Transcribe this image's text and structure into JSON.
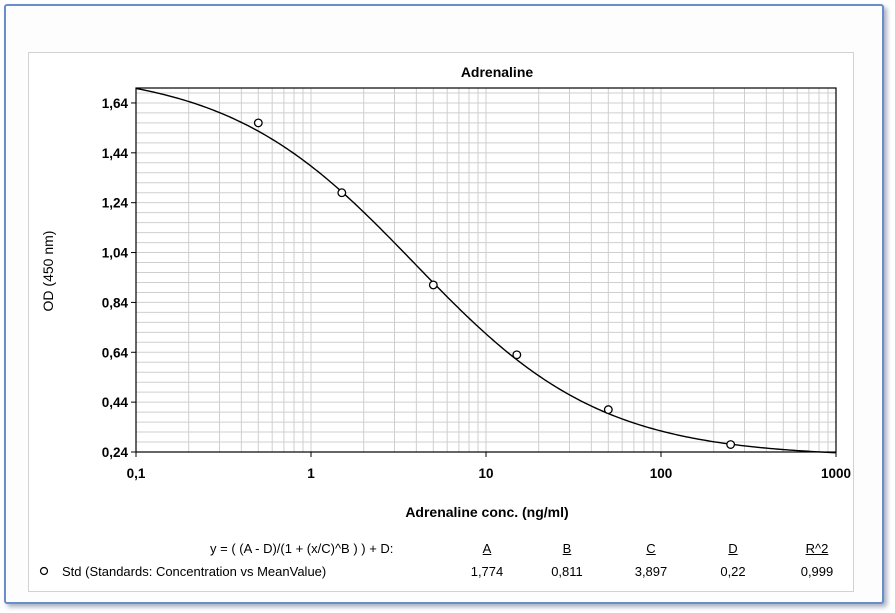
{
  "chart_data": {
    "type": "scatter",
    "title": "Adrenaline",
    "xlabel": "Adrenaline conc. (ng/ml)",
    "ylabel": "OD (450 nm)",
    "xscale": "log",
    "xlim": [
      0.1,
      1000
    ],
    "ylim": [
      0.24,
      1.7
    ],
    "x_ticks": [
      "0,1",
      "1",
      "10",
      "100",
      "1000"
    ],
    "y_ticks": [
      "0,24",
      "0,44",
      "0,64",
      "0,84",
      "1,04",
      "1,24",
      "1,44",
      "1,64"
    ],
    "grid": true,
    "series": [
      {
        "type": "scatter",
        "marker": "open-circle",
        "x": [
          0.5,
          1.5,
          5,
          15,
          50,
          250
        ],
        "y": [
          1.56,
          1.28,
          0.91,
          0.63,
          0.41,
          0.27
        ]
      }
    ],
    "fit": {
      "model": "4PL",
      "A": 1.774,
      "B": 0.811,
      "C": 3.897,
      "D": 0.22
    }
  },
  "legend": {
    "equation": "y = ( (A - D)/(1 + (x/C)^B ) ) + D:",
    "headers": [
      "A",
      "B",
      "C",
      "D",
      "R^2"
    ],
    "series_label": "Std (Standards: Concentration vs MeanValue)",
    "values": [
      "1,774",
      "0,811",
      "3,897",
      "0,22",
      "0,999"
    ]
  }
}
